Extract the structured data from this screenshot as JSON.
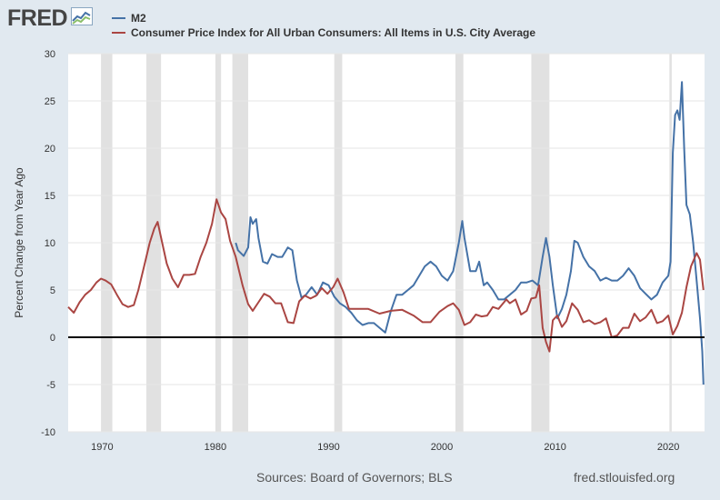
{
  "header": {
    "logo_text": "FRED",
    "logo_icon": "fred-chart-icon"
  },
  "colors": {
    "background": "#e1e9f0",
    "plot_background": "#ffffff",
    "recession_shade": "#e1e1e1",
    "zero_line": "#000000"
  },
  "footer": {
    "sources": "Sources: Board of Governors; BLS",
    "url": "fred.stlouisfed.org"
  },
  "chart_data": {
    "type": "line",
    "title": "",
    "xlabel": "",
    "ylabel": "Percent Change from Year Ago",
    "xlim": [
      1967.0,
      2023.2
    ],
    "ylim": [
      -10,
      30
    ],
    "x_ticks": [
      1970,
      1980,
      1990,
      2000,
      2010,
      2020
    ],
    "y_ticks": [
      -10,
      -5,
      0,
      5,
      10,
      15,
      20,
      25,
      30
    ],
    "grid": "horizontal",
    "legend_position": "top-left",
    "zero_line": 0,
    "recessions": [
      [
        1969.9,
        1970.9
      ],
      [
        1973.9,
        1975.2
      ],
      [
        1980.0,
        1980.5
      ],
      [
        1981.5,
        1982.9
      ],
      [
        1990.5,
        1991.2
      ],
      [
        2001.2,
        2001.9
      ],
      [
        2007.9,
        2009.5
      ],
      [
        2020.1,
        2020.3
      ]
    ],
    "series": [
      {
        "name": "M2",
        "color": "#4572a7",
        "x": [
          1981.8,
          1982.0,
          1982.5,
          1982.9,
          1983.1,
          1983.3,
          1983.6,
          1983.8,
          1984.2,
          1984.6,
          1985.0,
          1985.5,
          1985.9,
          1986.4,
          1986.8,
          1987.2,
          1987.6,
          1988.0,
          1988.5,
          1989.0,
          1989.5,
          1990.0,
          1990.5,
          1991.0,
          1991.5,
          1992.0,
          1992.5,
          1993.0,
          1993.5,
          1994.0,
          1994.5,
          1995.0,
          1995.5,
          1996.0,
          1996.5,
          1997.0,
          1997.5,
          1998.0,
          1998.5,
          1999.0,
          1999.5,
          2000.0,
          2000.5,
          2001.0,
          2001.5,
          2001.8,
          2002.0,
          2002.5,
          2003.0,
          2003.3,
          2003.7,
          2004.0,
          2004.5,
          2005.0,
          2005.5,
          2006.0,
          2006.5,
          2007.0,
          2007.5,
          2008.0,
          2008.5,
          2008.9,
          2009.2,
          2009.5,
          2009.8,
          2010.2,
          2010.6,
          2011.0,
          2011.4,
          2011.7,
          2012.0,
          2012.5,
          2013.0,
          2013.5,
          2014.0,
          2014.5,
          2015.0,
          2015.5,
          2016.0,
          2016.5,
          2017.0,
          2017.5,
          2018.0,
          2018.5,
          2019.0,
          2019.5,
          2020.0,
          2020.2,
          2020.4,
          2020.6,
          2020.8,
          2021.0,
          2021.2,
          2021.4,
          2021.6,
          2021.9,
          2022.2,
          2022.5,
          2022.8,
          2023.0,
          2023.1
        ],
        "values": [
          10.0,
          9.2,
          8.6,
          9.5,
          12.7,
          12.0,
          12.5,
          10.5,
          8.0,
          7.8,
          8.8,
          8.5,
          8.5,
          9.5,
          9.2,
          6.0,
          4.2,
          4.5,
          5.3,
          4.5,
          5.8,
          5.5,
          4.3,
          3.6,
          3.2,
          2.6,
          1.8,
          1.3,
          1.5,
          1.5,
          1.0,
          0.5,
          2.8,
          4.5,
          4.5,
          5.0,
          5.5,
          6.5,
          7.5,
          8.0,
          7.5,
          6.5,
          6.0,
          7.0,
          10.0,
          12.3,
          10.5,
          7.0,
          7.0,
          8.0,
          5.5,
          5.8,
          5.0,
          4.0,
          4.0,
          4.5,
          5.0,
          5.8,
          5.8,
          6.0,
          5.5,
          8.5,
          10.5,
          8.5,
          5.5,
          2.0,
          3.0,
          4.5,
          7.0,
          10.2,
          10.0,
          8.5,
          7.5,
          7.0,
          6.0,
          6.3,
          6.0,
          6.0,
          6.5,
          7.3,
          6.5,
          5.2,
          4.6,
          4.0,
          4.5,
          5.8,
          6.5,
          8.0,
          19.5,
          23.5,
          24.0,
          23.0,
          27.0,
          20.0,
          14.0,
          13.0,
          10.0,
          6.0,
          2.0,
          -1.5,
          -5.0
        ]
      },
      {
        "name": "Consumer Price Index for All Urban Consumers: All Items in U.S. City Average",
        "color": "#aa4643",
        "x": [
          1967.0,
          1967.5,
          1968.0,
          1968.5,
          1969.0,
          1969.5,
          1969.9,
          1970.3,
          1970.8,
          1971.3,
          1971.8,
          1972.3,
          1972.8,
          1973.2,
          1973.7,
          1974.2,
          1974.6,
          1974.9,
          1975.3,
          1975.7,
          1976.2,
          1976.7,
          1977.2,
          1977.7,
          1978.2,
          1978.7,
          1979.2,
          1979.7,
          1980.1,
          1980.5,
          1980.9,
          1981.3,
          1981.8,
          1982.4,
          1982.9,
          1983.3,
          1983.8,
          1984.3,
          1984.8,
          1985.3,
          1985.8,
          1986.4,
          1986.9,
          1987.4,
          1987.9,
          1988.4,
          1988.9,
          1989.4,
          1989.9,
          1990.4,
          1990.8,
          1991.3,
          1991.8,
          1992.5,
          1993.5,
          1994.5,
          1995.5,
          1996.5,
          1997.5,
          1998.3,
          1999.0,
          1999.8,
          2000.5,
          2001.0,
          2001.5,
          2002.0,
          2002.5,
          2003.0,
          2003.5,
          2004.0,
          2004.5,
          2005.0,
          2005.7,
          2006.0,
          2006.5,
          2007.0,
          2007.5,
          2007.9,
          2008.3,
          2008.6,
          2008.9,
          2009.2,
          2009.5,
          2009.8,
          2010.2,
          2010.6,
          2011.0,
          2011.5,
          2012.0,
          2012.5,
          2013.0,
          2013.5,
          2014.0,
          2014.5,
          2015.0,
          2015.5,
          2016.0,
          2016.5,
          2017.0,
          2017.5,
          2018.0,
          2018.5,
          2019.0,
          2019.5,
          2020.0,
          2020.4,
          2020.8,
          2021.2,
          2021.6,
          2022.0,
          2022.5,
          2022.8,
          2023.1
        ],
        "values": [
          3.2,
          2.6,
          3.7,
          4.5,
          5.0,
          5.8,
          6.2,
          6.0,
          5.6,
          4.5,
          3.5,
          3.2,
          3.4,
          5.0,
          7.5,
          10.0,
          11.5,
          12.2,
          10.0,
          7.8,
          6.2,
          5.3,
          6.6,
          6.6,
          6.7,
          8.5,
          10.0,
          12.0,
          14.6,
          13.2,
          12.5,
          10.2,
          8.5,
          5.5,
          3.5,
          2.8,
          3.7,
          4.6,
          4.3,
          3.6,
          3.6,
          1.6,
          1.5,
          3.8,
          4.4,
          4.1,
          4.4,
          5.2,
          4.6,
          5.3,
          6.2,
          4.8,
          3.0,
          3.0,
          3.0,
          2.5,
          2.8,
          2.9,
          2.3,
          1.6,
          1.6,
          2.7,
          3.3,
          3.6,
          2.9,
          1.3,
          1.6,
          2.4,
          2.2,
          2.3,
          3.2,
          3.0,
          4.0,
          3.6,
          4.0,
          2.4,
          2.8,
          4.1,
          4.2,
          5.5,
          1.0,
          -0.5,
          -1.5,
          1.8,
          2.3,
          1.1,
          1.7,
          3.6,
          2.9,
          1.6,
          1.8,
          1.4,
          1.6,
          2.0,
          0.0,
          0.2,
          1.0,
          1.0,
          2.5,
          1.7,
          2.1,
          2.9,
          1.5,
          1.7,
          2.3,
          0.3,
          1.2,
          2.6,
          5.3,
          7.5,
          8.9,
          8.2,
          5.0
        ]
      }
    ]
  }
}
